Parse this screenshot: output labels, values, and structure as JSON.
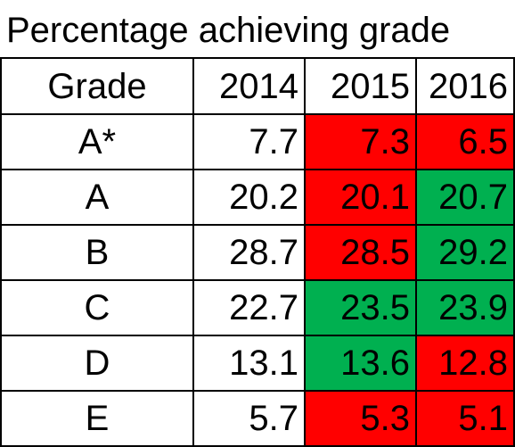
{
  "title": "Percentage achieving grade",
  "headers": {
    "grade": "Grade",
    "y2014": "2014",
    "y2015": "2015",
    "y2016": "2016"
  },
  "colors": {
    "decrease": "#ff0000",
    "increase": "#00b050"
  },
  "rows": [
    {
      "grade": "A*",
      "y2014": "7.7",
      "y2015": "7.3",
      "y2016": "6.5",
      "s2015": "red",
      "s2016": "red"
    },
    {
      "grade": "A",
      "y2014": "20.2",
      "y2015": "20.1",
      "y2016": "20.7",
      "s2015": "red",
      "s2016": "green"
    },
    {
      "grade": "B",
      "y2014": "28.7",
      "y2015": "28.5",
      "y2016": "29.2",
      "s2015": "red",
      "s2016": "green"
    },
    {
      "grade": "C",
      "y2014": "22.7",
      "y2015": "23.5",
      "y2016": "23.9",
      "s2015": "green",
      "s2016": "green"
    },
    {
      "grade": "D",
      "y2014": "13.1",
      "y2015": "13.6",
      "y2016": "12.8",
      "s2015": "green",
      "s2016": "red"
    },
    {
      "grade": "E",
      "y2014": "5.7",
      "y2015": "5.3",
      "y2016": "5.1",
      "s2015": "red",
      "s2016": "red"
    }
  ]
}
